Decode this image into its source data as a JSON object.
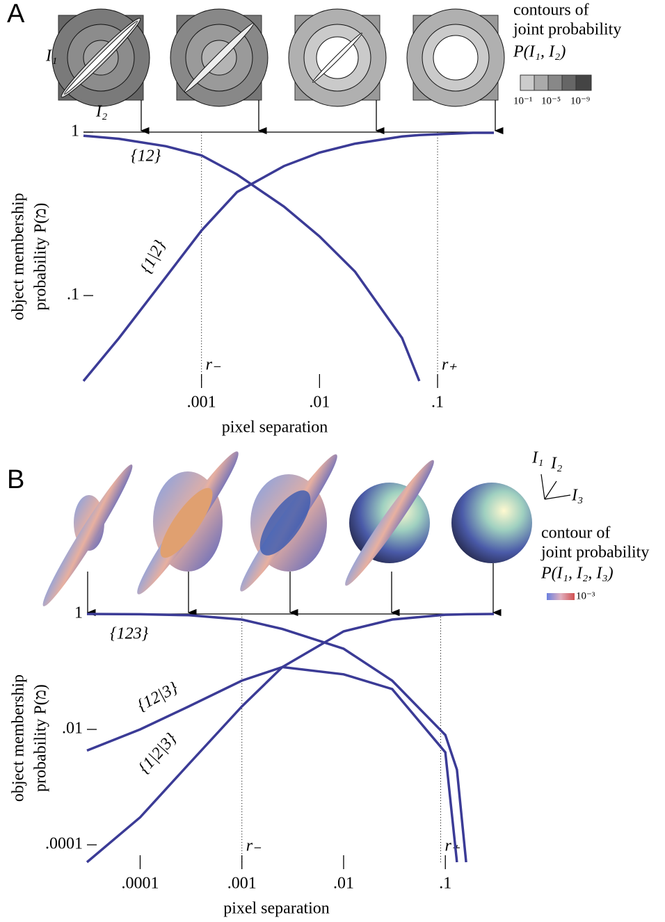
{
  "chart_data": [
    {
      "type": "line",
      "panel_label": "A",
      "xlabel": "pixel separation",
      "ylabel": [
        "object membership",
        "probability P(מ)"
      ],
      "legend_lines": [
        "contours of",
        "joint probability",
        "P(I₁, I₂)"
      ],
      "colorbar_labels": [
        "10⁻¹",
        "10⁻⁵",
        "10⁻⁹"
      ],
      "axis_symbols": [
        "I₁",
        "I₂"
      ],
      "xscale": "log",
      "yscale": "log",
      "xlim": [
        0.0001,
        0.3
      ],
      "ylim": [
        0.03,
        1
      ],
      "xticks": [
        {
          "value": 0.001,
          "label": ".001"
        },
        {
          "value": 0.01,
          "label": ".01"
        },
        {
          "value": 0.1,
          "label": ".1"
        }
      ],
      "yticks": [
        1,
        {
          "value": 0.1,
          "label": ".1"
        }
      ],
      "vlines": [
        {
          "value": 0.001,
          "label": "r₋"
        },
        {
          "value": 0.1,
          "label": "r₊"
        }
      ],
      "x": [
        0.0001,
        0.0002,
        0.0005,
        0.001,
        0.002,
        0.005,
        0.01,
        0.02,
        0.05,
        0.07,
        0.1,
        0.2,
        0.3
      ],
      "series": [
        {
          "name": "{12}",
          "color": "#3b3b96",
          "values": [
            0.95,
            0.91,
            0.82,
            0.72,
            0.55,
            0.35,
            0.23,
            0.14,
            0.055,
            0.03,
            null,
            null,
            null
          ]
        },
        {
          "name": "{1|2}",
          "color": "#3b3b96",
          "values": [
            0.03,
            0.055,
            0.13,
            0.25,
            0.43,
            0.62,
            0.75,
            0.85,
            0.94,
            0.96,
            0.97,
            0.99,
            0.99
          ]
        }
      ]
    },
    {
      "type": "line",
      "panel_label": "B",
      "xlabel": "pixel separation",
      "ylabel": [
        "object membership",
        "probability P(מ)"
      ],
      "legend_lines": [
        "contour of",
        "joint probability",
        "P(I₁, I₂, I₃)"
      ],
      "colorbar_labels": [
        "10⁻³"
      ],
      "axis_symbols": [
        "I₁",
        "I₂",
        "I₃"
      ],
      "xscale": "log",
      "yscale": "log",
      "xlim": [
        3e-05,
        0.3
      ],
      "ylim": [
        5e-05,
        1
      ],
      "xticks": [
        {
          "value": 0.0001,
          "label": ".0001"
        },
        {
          "value": 0.001,
          "label": ".001"
        },
        {
          "value": 0.01,
          "label": ".01"
        },
        {
          "value": 0.1,
          "label": ".1"
        }
      ],
      "yticks": [
        1,
        {
          "value": 0.01,
          "label": ".01"
        },
        {
          "value": 0.0001,
          "label": ".0001"
        }
      ],
      "vlines": [
        {
          "value": 0.001,
          "label": "r₋"
        },
        {
          "value": 0.09,
          "label": "r₊"
        }
      ],
      "x": [
        3e-05,
        0.0001,
        0.0003,
        0.001,
        0.0025,
        0.01,
        0.03,
        0.1,
        0.13,
        0.16,
        0.3
      ],
      "series": [
        {
          "name": "{123}",
          "color": "#3b3b96",
          "values": [
            1,
            0.99,
            0.95,
            0.8,
            0.55,
            0.25,
            0.07,
            0.008,
            0.002,
            5e-05,
            null
          ]
        },
        {
          "name": "{12|3}",
          "color": "#3b3b96",
          "values": [
            0.0043,
            0.01,
            0.025,
            0.07,
            0.12,
            0.09,
            0.05,
            0.004,
            5e-05,
            null,
            null
          ]
        },
        {
          "name": "{1|2|3}",
          "color": "#3b3b96",
          "values": [
            5e-05,
            0.0003,
            0.0025,
            0.025,
            0.12,
            0.5,
            0.8,
            0.97,
            0.98,
            0.99,
            1
          ]
        }
      ]
    }
  ]
}
